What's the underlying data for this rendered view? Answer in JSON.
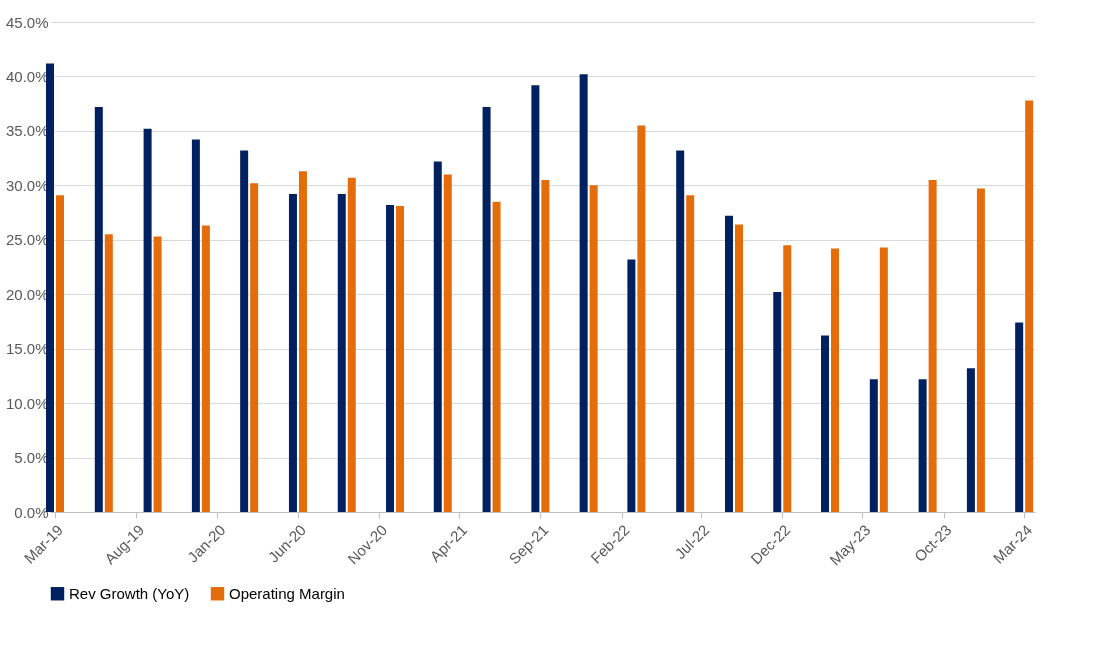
{
  "chart_data": {
    "type": "bar",
    "x": [
      "2019-03",
      "2019-06",
      "2019-09",
      "2019-12",
      "2020-03",
      "2020-06",
      "2020-09",
      "2020-12",
      "2021-03",
      "2021-06",
      "2021-09",
      "2021-12",
      "2022-03",
      "2022-06",
      "2022-09",
      "2022-12",
      "2023-03",
      "2023-06",
      "2023-09",
      "2023-12",
      "2024-03"
    ],
    "series": [
      {
        "name": "Rev Growth (YoY)",
        "color": "#002060",
        "values": [
          41.2,
          37.2,
          35.2,
          34.2,
          33.2,
          29.2,
          29.2,
          28.2,
          32.2,
          37.2,
          39.2,
          40.2,
          23.2,
          33.2,
          27.2,
          20.2,
          16.2,
          12.2,
          12.2,
          13.2,
          17.4
        ]
      },
      {
        "name": "Operating Margin",
        "color": "#e46c0a",
        "values": [
          29.1,
          25.5,
          25.3,
          26.3,
          30.2,
          31.3,
          30.7,
          28.1,
          31.0,
          28.5,
          30.5,
          30.0,
          35.5,
          29.1,
          26.4,
          24.5,
          24.2,
          24.3,
          30.5,
          29.7,
          37.8
        ]
      }
    ],
    "xlim": [
      "2019-03",
      "2024-03-12"
    ],
    "xticks": [
      {
        "value": "2019-03",
        "label": "Mar-19"
      },
      {
        "value": "2019-08",
        "label": "Aug-19"
      },
      {
        "value": "2020-01",
        "label": "Jan-20"
      },
      {
        "value": "2020-06",
        "label": "Jun-20"
      },
      {
        "value": "2020-11",
        "label": "Nov-20"
      },
      {
        "value": "2021-04",
        "label": "Apr-21"
      },
      {
        "value": "2021-09",
        "label": "Sep-21"
      },
      {
        "value": "2022-02",
        "label": "Feb-22"
      },
      {
        "value": "2022-07",
        "label": "Jul-22"
      },
      {
        "value": "2022-12",
        "label": "Dec-22"
      },
      {
        "value": "2023-05",
        "label": "May-23"
      },
      {
        "value": "2023-10",
        "label": "Oct-23"
      },
      {
        "value": "2024-03",
        "label": "Mar-24"
      }
    ],
    "ylim": [
      0,
      45
    ],
    "yticks": [
      {
        "value": 0,
        "label": "0.0%"
      },
      {
        "value": 5,
        "label": "5.0%"
      },
      {
        "value": 10,
        "label": "10.0%"
      },
      {
        "value": 15,
        "label": "15.0%"
      },
      {
        "value": 20,
        "label": "20.0%"
      },
      {
        "value": 25,
        "label": "25.0%"
      },
      {
        "value": 30,
        "label": "30.0%"
      },
      {
        "value": 35,
        "label": "35.0%"
      },
      {
        "value": 40,
        "label": "40.0%"
      },
      {
        "value": 45,
        "label": "45.0%"
      }
    ],
    "grid": "y",
    "legend": "bottom"
  }
}
